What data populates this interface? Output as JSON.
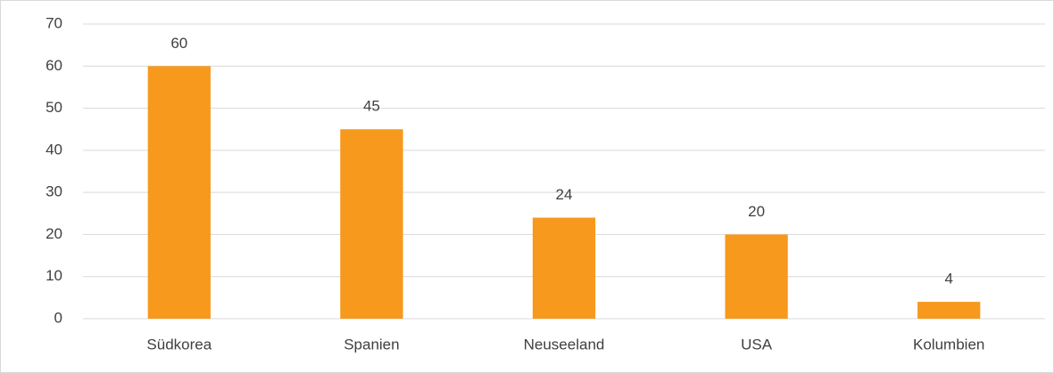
{
  "chart_data": {
    "type": "bar",
    "categories": [
      "Südkorea",
      "Spanien",
      "Neuseeland",
      "USA",
      "Kolumbien"
    ],
    "values": [
      60,
      45,
      24,
      20,
      4
    ],
    "color": "#f7991c",
    "ylim": [
      0,
      70
    ],
    "yticks": [
      0,
      10,
      20,
      30,
      40,
      50,
      60,
      70
    ],
    "grid": true
  }
}
